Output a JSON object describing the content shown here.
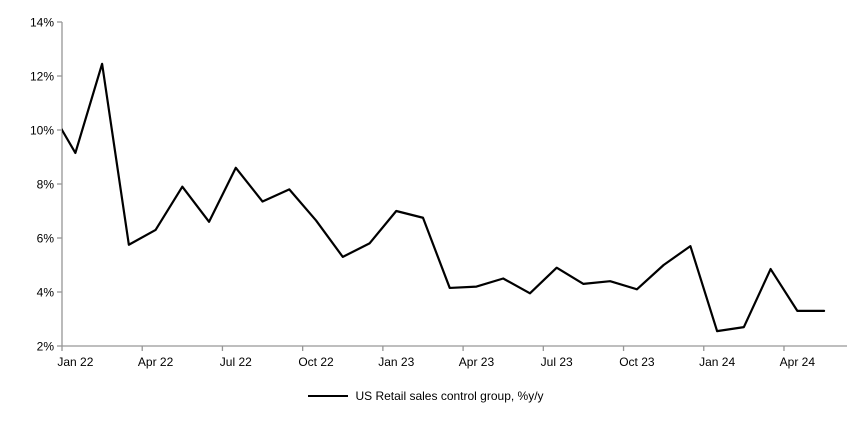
{
  "chart_data": {
    "type": "line",
    "title": "",
    "xlabel": "",
    "ylabel": "",
    "ylim": [
      2,
      14
    ],
    "y_tick_step": 2,
    "grid": "off",
    "legend_position": "bottom-center",
    "y_tick_labels": [
      "14%",
      "12%",
      "10%",
      "8%",
      "6%",
      "4%",
      "2%"
    ],
    "y_tick_values": [
      14,
      12,
      10,
      8,
      6,
      4,
      2
    ],
    "x_tick_labels": [
      "Jan 22",
      "Apr 22",
      "Jul 22",
      "Oct 22",
      "Jan 23",
      "Apr 23",
      "Jul 23",
      "Oct 23",
      "Jan 24",
      "Apr 24"
    ],
    "note": "First point (Dec 21) lies left of the y-axis; its segment into Jan 22 is clipped at the plot edge, entering the plot at 10%.",
    "series": [
      {
        "name": "US Retail sales control group, %y/y",
        "color": "#000000",
        "points": [
          {
            "month": "Dec 21",
            "value": 10.85
          },
          {
            "month": "Jan 22",
            "value": 9.15
          },
          {
            "month": "Feb 22",
            "value": 12.45
          },
          {
            "month": "Mar 22",
            "value": 5.75
          },
          {
            "month": "Apr 22",
            "value": 6.3
          },
          {
            "month": "May 22",
            "value": 7.9
          },
          {
            "month": "Jun 22",
            "value": 6.6
          },
          {
            "month": "Jul 22",
            "value": 8.6
          },
          {
            "month": "Aug 22",
            "value": 7.35
          },
          {
            "month": "Sep 22",
            "value": 7.8
          },
          {
            "month": "Oct 22",
            "value": 6.65
          },
          {
            "month": "Nov 22",
            "value": 5.3
          },
          {
            "month": "Dec 22",
            "value": 5.8
          },
          {
            "month": "Jan 23",
            "value": 7.0
          },
          {
            "month": "Feb 23",
            "value": 6.75
          },
          {
            "month": "Mar 23",
            "value": 4.15
          },
          {
            "month": "Apr 23",
            "value": 4.2
          },
          {
            "month": "May 23",
            "value": 4.5
          },
          {
            "month": "Jun 23",
            "value": 3.95
          },
          {
            "month": "Jul 23",
            "value": 4.9
          },
          {
            "month": "Aug 23",
            "value": 4.3
          },
          {
            "month": "Sep 23",
            "value": 4.4
          },
          {
            "month": "Oct 23",
            "value": 4.1
          },
          {
            "month": "Nov 23",
            "value": 5.0
          },
          {
            "month": "Dec 23",
            "value": 5.7
          },
          {
            "month": "Jan 24",
            "value": 2.55
          },
          {
            "month": "Feb 24",
            "value": 2.7
          },
          {
            "month": "Mar 24",
            "value": 4.85
          },
          {
            "month": "Apr 24",
            "value": 3.3
          },
          {
            "month": "May 24",
            "value": 3.3
          }
        ]
      }
    ]
  },
  "legend": {
    "label": "US Retail sales control group, %y/y"
  },
  "colors": {
    "series_line": "#000000",
    "axis_line": "#969696",
    "tick_text": "#000000",
    "background": "#ffffff"
  }
}
